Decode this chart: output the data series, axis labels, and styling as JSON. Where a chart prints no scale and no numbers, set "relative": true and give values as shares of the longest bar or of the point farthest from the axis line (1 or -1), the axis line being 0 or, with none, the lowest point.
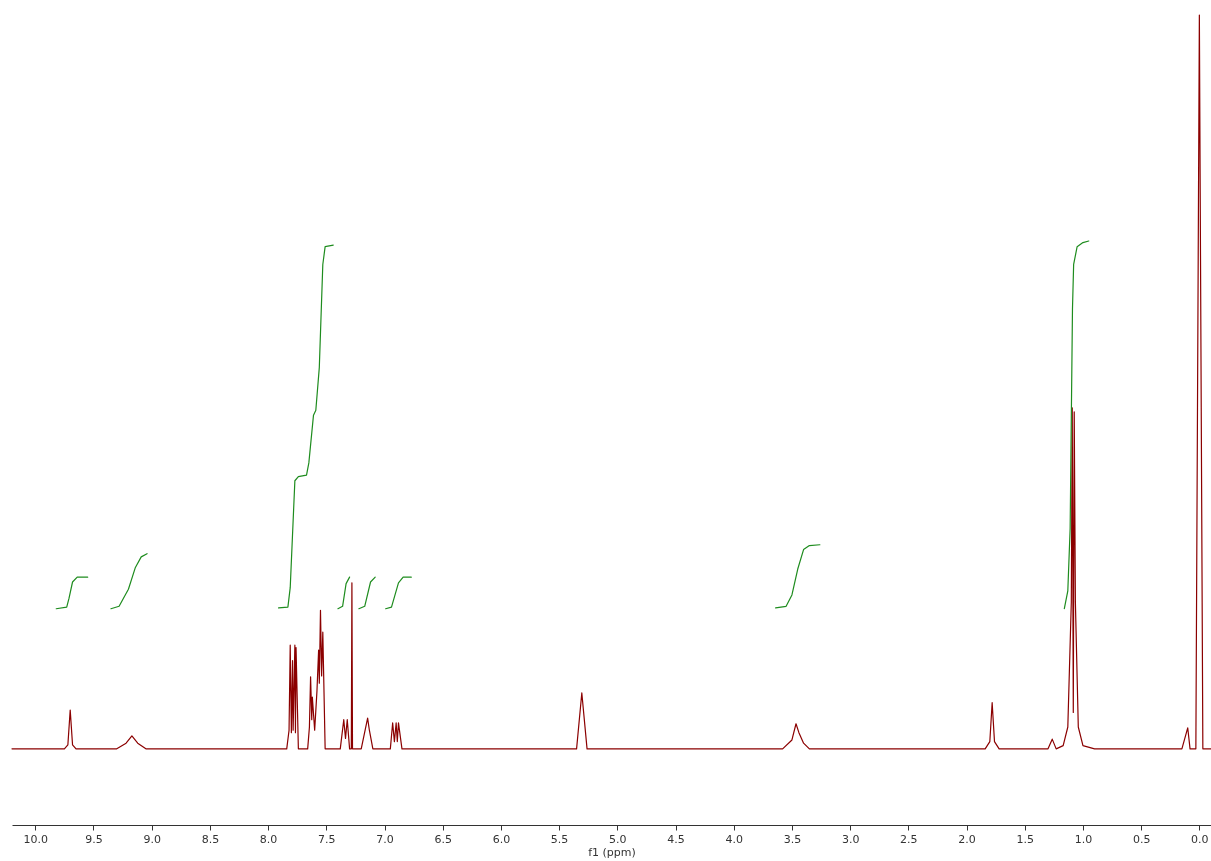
{
  "chart_data": {
    "type": "line",
    "relative": true,
    "xlabel": "f1 (ppm)",
    "xlim": [
      10.2,
      -0.1
    ],
    "xticks": [
      {
        "value": 10,
        "label": "10.0"
      },
      {
        "value": 9.5,
        "label": "9.5"
      },
      {
        "value": 9,
        "label": "9.0"
      },
      {
        "value": 8.5,
        "label": "8.5"
      },
      {
        "value": 8,
        "label": "8.0"
      },
      {
        "value": 7.5,
        "label": "7.5"
      },
      {
        "value": 7,
        "label": "7.0"
      },
      {
        "value": 6.5,
        "label": "6.5"
      },
      {
        "value": 6,
        "label": "6.0"
      },
      {
        "value": 5.5,
        "label": "5.5"
      },
      {
        "value": 5,
        "label": "5.0"
      },
      {
        "value": 4.5,
        "label": "4.5"
      },
      {
        "value": 4,
        "label": "4.0"
      },
      {
        "value": 3.5,
        "label": "3.5"
      },
      {
        "value": 3,
        "label": "3.0"
      },
      {
        "value": 2.5,
        "label": "2.5"
      },
      {
        "value": 2,
        "label": "2.0"
      },
      {
        "value": 1.5,
        "label": "1.5"
      },
      {
        "value": 1,
        "label": "1.0"
      },
      {
        "value": 0.5,
        "label": "0.5"
      },
      {
        "value": 0,
        "label": "0.0"
      }
    ],
    "grid": false,
    "line_style": "solid",
    "marker": "none",
    "series": [
      {
        "color": "#8b0000",
        "x": [
          10.2,
          9.75,
          9.72,
          9.7,
          9.68,
          9.65,
          9.3,
          9.22,
          9.17,
          9.12,
          9.05,
          7.84,
          7.82,
          7.81,
          7.8,
          7.79,
          7.785,
          7.77,
          7.765,
          7.76,
          7.74,
          7.66,
          7.645,
          7.635,
          7.625,
          7.62,
          7.6,
          7.58,
          7.566,
          7.56,
          7.55,
          7.54,
          7.53,
          7.51,
          7.38,
          7.35,
          7.335,
          7.32,
          7.3,
          7.285,
          7.28,
          7.275,
          7.2,
          7.145,
          7.13,
          7.1,
          6.95,
          6.93,
          6.915,
          6.9,
          6.89,
          6.88,
          6.85,
          5.35,
          5.305,
          5.26,
          3.58,
          3.5,
          3.465,
          3.44,
          3.4,
          3.35,
          1.84,
          1.8,
          1.78,
          1.76,
          1.72,
          1.3,
          1.264,
          1.23,
          1.17,
          1.13,
          1.1,
          1.092,
          1.083,
          1.075,
          1.065,
          1.04,
          1.0,
          0.9,
          0.15,
          0.1,
          0.08,
          0.03,
          0.0,
          -0.03,
          -0.1
        ],
        "values": [
          0.094,
          0.094,
          0.099,
          0.142,
          0.099,
          0.094,
          0.094,
          0.101,
          0.11,
          0.101,
          0.094,
          0.094,
          0.117,
          0.222,
          0.114,
          0.203,
          0.117,
          0.222,
          0.114,
          0.219,
          0.094,
          0.094,
          0.121,
          0.183,
          0.13,
          0.158,
          0.117,
          0.166,
          0.216,
          0.175,
          0.265,
          0.184,
          0.238,
          0.094,
          0.094,
          0.13,
          0.107,
          0.13,
          0.094,
          0.094,
          0.299,
          0.094,
          0.094,
          0.132,
          0.117,
          0.094,
          0.094,
          0.126,
          0.103,
          0.126,
          0.103,
          0.126,
          0.094,
          0.094,
          0.163,
          0.094,
          0.094,
          0.105,
          0.125,
          0.114,
          0.101,
          0.094,
          0.094,
          0.103,
          0.151,
          0.103,
          0.094,
          0.094,
          0.106,
          0.094,
          0.098,
          0.121,
          0.275,
          0.515,
          0.139,
          0.51,
          0.275,
          0.121,
          0.098,
          0.094,
          0.094,
          0.12,
          0.094,
          0.094,
          1,
          0.094,
          0.094
        ]
      },
      {
        "color": "#1e8c1e",
        "x": [
          9.82,
          9.73,
          9.71,
          9.68,
          9.64,
          9.55
        ],
        "values": [
          0.267,
          0.269,
          0.28,
          0.3,
          0.306,
          0.306
        ]
      },
      {
        "color": "#1e8c1e",
        "x": [
          9.35,
          9.28,
          9.2,
          9.14,
          9.09,
          9.04
        ],
        "values": [
          0.267,
          0.27,
          0.291,
          0.318,
          0.331,
          0.335
        ]
      },
      {
        "color": "#1e8c1e",
        "x": [
          7.91,
          7.83,
          7.81,
          7.77,
          7.74,
          7.67,
          7.65,
          7.61,
          7.59,
          7.56,
          7.53,
          7.51,
          7.44
        ],
        "values": [
          0.268,
          0.269,
          0.293,
          0.425,
          0.43,
          0.432,
          0.447,
          0.506,
          0.512,
          0.565,
          0.692,
          0.714,
          0.716
        ]
      },
      {
        "color": "#1e8c1e",
        "x": [
          7.4,
          7.36,
          7.33,
          7.3
        ],
        "values": [
          0.267,
          0.27,
          0.298,
          0.306
        ]
      },
      {
        "color": "#1e8c1e",
        "x": [
          7.22,
          7.17,
          7.12,
          7.08
        ],
        "values": [
          0.267,
          0.27,
          0.3,
          0.306
        ]
      },
      {
        "color": "#1e8c1e",
        "x": [
          6.99,
          6.94,
          6.88,
          6.84,
          6.77
        ],
        "values": [
          0.267,
          0.269,
          0.299,
          0.306,
          0.306
        ]
      },
      {
        "color": "#1e8c1e",
        "x": [
          3.64,
          3.55,
          3.5,
          3.45,
          3.4,
          3.35,
          3.26
        ],
        "values": [
          0.268,
          0.27,
          0.284,
          0.316,
          0.34,
          0.345,
          0.346
        ]
      },
      {
        "color": "#1e8c1e",
        "x": [
          1.16,
          1.13,
          1.11,
          1.1,
          1.09,
          1.08,
          1.05,
          1.0,
          0.95
        ],
        "values": [
          0.267,
          0.289,
          0.366,
          0.502,
          0.637,
          0.692,
          0.714,
          0.719,
          0.721
        ]
      }
    ]
  }
}
